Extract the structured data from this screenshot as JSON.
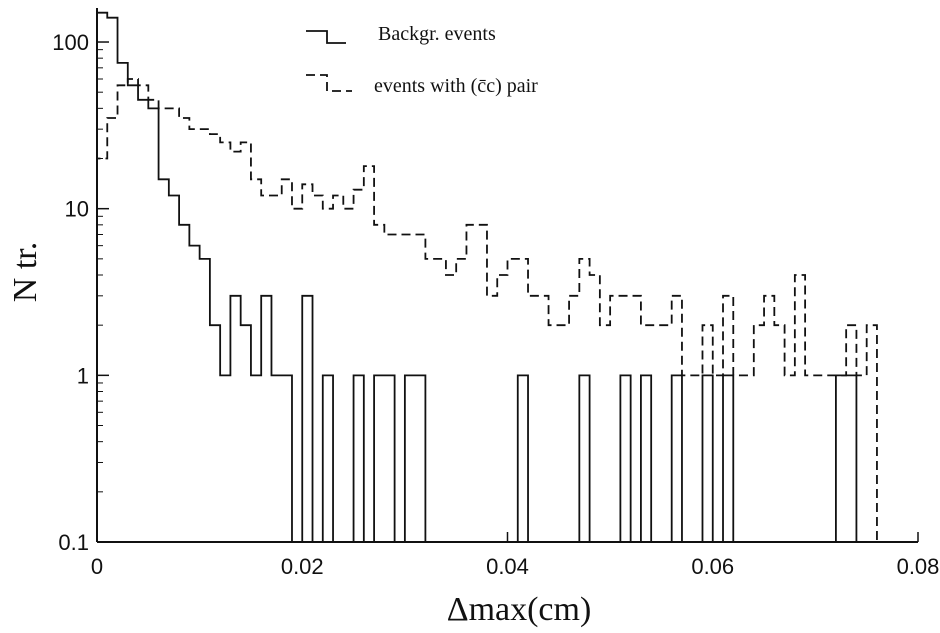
{
  "chart_data": {
    "type": "line",
    "title": "",
    "xlabel": "Δmax(cm)",
    "ylabel": "N tr.",
    "xlim": [
      0,
      0.08
    ],
    "ylim": [
      0.1,
      160
    ],
    "y_scale": "log",
    "grid": false,
    "legend_position": "top-center",
    "x_ticks": [
      "0",
      "0.02",
      "0.04",
      "0.06",
      "0.08"
    ],
    "y_ticks": [
      "0.1",
      "1",
      "10",
      "100"
    ],
    "bin_width": 0.001,
    "series": [
      {
        "name": "Backgr. events",
        "style": "solid",
        "color": "#111111",
        "x": [
          0.0,
          0.001,
          0.002,
          0.003,
          0.004,
          0.005,
          0.006,
          0.007,
          0.008,
          0.009,
          0.01,
          0.011,
          0.012,
          0.013,
          0.014,
          0.015,
          0.016,
          0.017,
          0.018,
          0.019,
          0.02,
          0.021,
          0.022,
          0.023,
          0.024,
          0.025,
          0.026,
          0.027,
          0.028,
          0.029,
          0.03,
          0.031,
          0.032,
          0.033,
          0.034,
          0.035,
          0.036,
          0.037,
          0.038,
          0.039,
          0.04,
          0.041,
          0.042,
          0.043,
          0.044,
          0.045,
          0.046,
          0.047,
          0.048,
          0.049,
          0.05,
          0.051,
          0.052,
          0.053,
          0.054,
          0.055,
          0.056,
          0.057,
          0.058,
          0.059,
          0.06,
          0.061,
          0.062,
          0.063,
          0.064,
          0.065,
          0.066,
          0.067,
          0.068,
          0.069,
          0.07,
          0.071,
          0.072,
          0.073,
          0.074
        ],
        "values": [
          150,
          140,
          75,
          55,
          45,
          40,
          15,
          12,
          8,
          6,
          5,
          2,
          1,
          3,
          2,
          1,
          3,
          1,
          1,
          0.1,
          3,
          0.1,
          1,
          0.1,
          0.1,
          1,
          0.1,
          1,
          1,
          0.1,
          1,
          1,
          0.1,
          0.1,
          0.1,
          0.1,
          0.1,
          0.1,
          0.1,
          0.1,
          0.1,
          1,
          0.1,
          0.1,
          0.1,
          0.1,
          0.1,
          1,
          0.1,
          0.1,
          0.1,
          1,
          0.1,
          1,
          0.1,
          0.1,
          1,
          0.1,
          0.1,
          1,
          0.1,
          1,
          0.1,
          0.1,
          0.1,
          0.1,
          0.1,
          0.1,
          0.1,
          0.1,
          0.1,
          0.1,
          1,
          1,
          0.1
        ]
      },
      {
        "name": "events with (c̄c) pair",
        "style": "dashed",
        "color": "#111111",
        "x": [
          0.0,
          0.001,
          0.002,
          0.003,
          0.004,
          0.005,
          0.006,
          0.007,
          0.008,
          0.009,
          0.01,
          0.011,
          0.012,
          0.013,
          0.014,
          0.015,
          0.016,
          0.017,
          0.018,
          0.019,
          0.02,
          0.021,
          0.022,
          0.023,
          0.024,
          0.025,
          0.026,
          0.027,
          0.028,
          0.029,
          0.03,
          0.031,
          0.032,
          0.033,
          0.034,
          0.035,
          0.036,
          0.037,
          0.038,
          0.039,
          0.04,
          0.041,
          0.042,
          0.043,
          0.044,
          0.045,
          0.046,
          0.047,
          0.048,
          0.049,
          0.05,
          0.051,
          0.052,
          0.053,
          0.054,
          0.055,
          0.056,
          0.057,
          0.058,
          0.059,
          0.06,
          0.061,
          0.062,
          0.063,
          0.064,
          0.065,
          0.066,
          0.067,
          0.068,
          0.069,
          0.07,
          0.071,
          0.072,
          0.073,
          0.074,
          0.075
        ],
        "values": [
          20,
          35,
          55,
          60,
          55,
          45,
          40,
          40,
          35,
          30,
          30,
          28,
          25,
          22,
          25,
          15,
          12,
          12,
          15,
          10,
          14,
          12,
          10,
          12,
          10,
          13,
          18,
          8,
          7,
          7,
          7,
          7,
          5,
          5,
          4,
          5,
          8,
          8,
          3,
          4,
          5,
          5,
          3,
          3,
          2,
          2,
          3,
          5,
          4,
          2,
          3,
          3,
          3,
          2,
          2,
          2,
          3,
          1,
          1,
          2,
          1,
          3,
          1,
          1,
          2,
          3,
          2,
          1,
          4,
          1,
          1,
          1,
          1,
          2,
          1,
          2
        ]
      }
    ]
  }
}
